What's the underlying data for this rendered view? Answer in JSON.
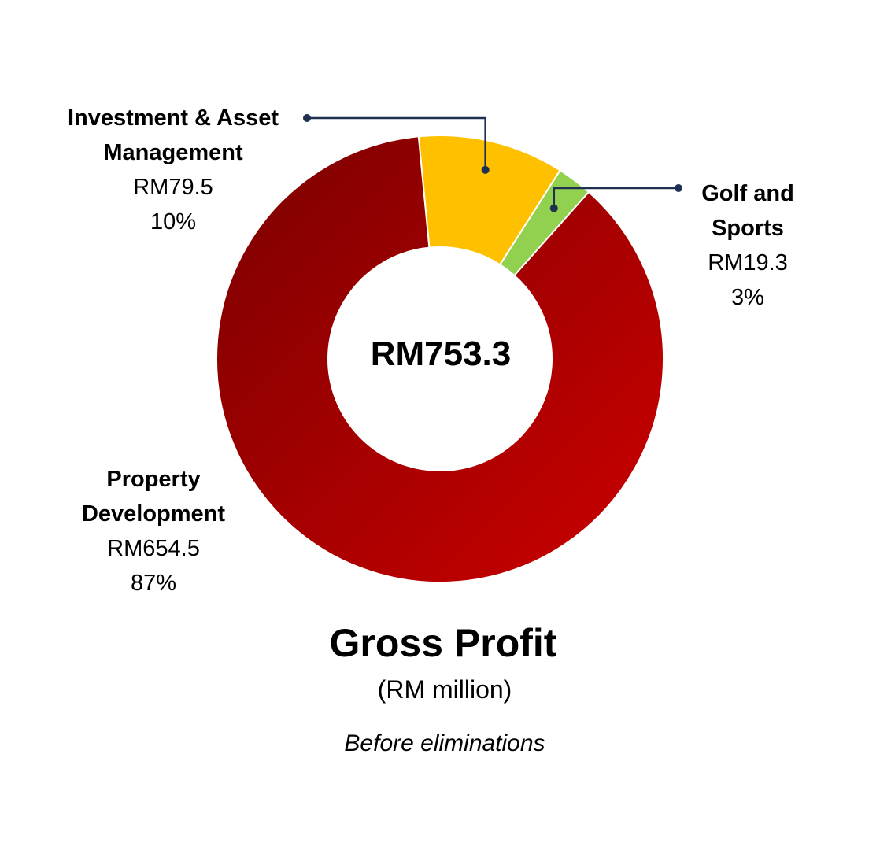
{
  "chart_data": {
    "type": "pie",
    "variant": "donut",
    "center_label": "RM753.3",
    "title": "Gross Profit",
    "subtitle": "(RM million)",
    "note": "Before eliminations",
    "slices": [
      {
        "name": "Investment & Asset Management",
        "name_line1": "Investment & Asset",
        "name_line2": "Management",
        "value": 79.5,
        "value_label": "RM79.5",
        "percent_label": "10%",
        "color": "#FFC000"
      },
      {
        "name": "Golf and Sports",
        "name_line1": "Golf and",
        "name_line2": "Sports",
        "value": 19.3,
        "value_label": "RM19.3",
        "percent_label": "3%",
        "color": "#92D050"
      },
      {
        "name": "Property Development",
        "name_line1": "Property",
        "name_line2": "Development",
        "value": 654.5,
        "value_label": "RM654.5",
        "percent_label": "87%",
        "color": "#B00000"
      }
    ],
    "legend": "none"
  }
}
